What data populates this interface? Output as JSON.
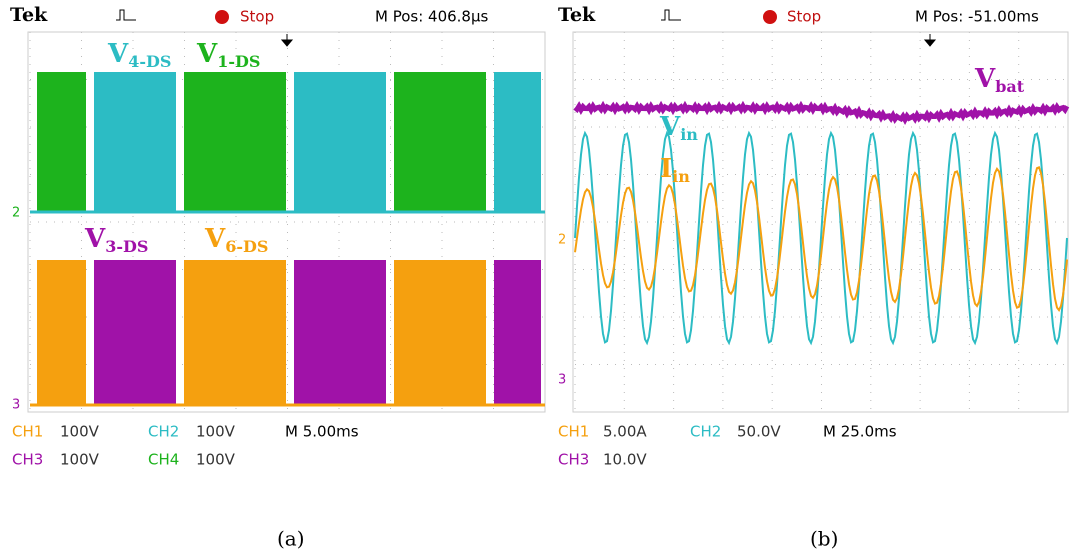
{
  "panels": [
    {
      "header": {
        "brand": "Tek",
        "state": "Stop",
        "position": "M Pos: 406.8µs"
      },
      "labels": [
        {
          "main": "V",
          "sub": "4-DS"
        },
        {
          "main": "V",
          "sub": "1-DS"
        },
        {
          "main": "V",
          "sub": "3-DS"
        },
        {
          "main": "V",
          "sub": "6-DS"
        }
      ],
      "markers": [
        "2",
        "3"
      ],
      "footer": [
        [
          "CH1",
          "100V",
          "CH2",
          "100V",
          "M 5.00ms"
        ],
        [
          "CH3",
          "100V",
          "CH4",
          "100V"
        ]
      ],
      "caption": "(a)"
    },
    {
      "header": {
        "brand": "Tek",
        "state": "Stop",
        "position": "M Pos: -51.00ms"
      },
      "labels": [
        {
          "main": "V",
          "sub": "bat"
        },
        {
          "main": "V",
          "sub": "in"
        },
        {
          "main": "I",
          "sub": "in"
        }
      ],
      "markers": [
        "2",
        "3"
      ],
      "footer": [
        [
          "CH1",
          "5.00A",
          "CH2",
          "50.0V",
          "M 25.0ms"
        ],
        [
          "CH3",
          "10.0V"
        ]
      ],
      "caption": "(b)"
    }
  ]
}
